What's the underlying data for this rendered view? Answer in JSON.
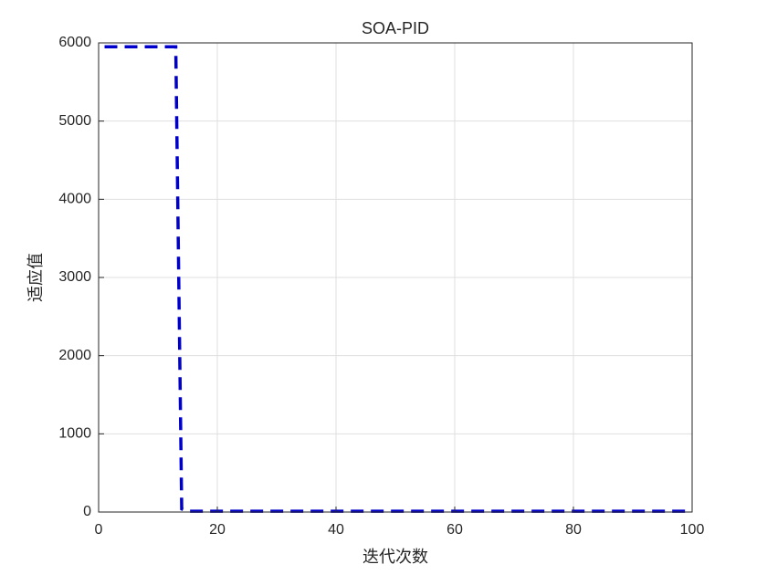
{
  "chart_data": {
    "type": "line",
    "title": "SOA-PID",
    "xlabel": "迭代次数",
    "ylabel": "适应值",
    "x": [
      1,
      2,
      3,
      4,
      5,
      6,
      7,
      8,
      9,
      10,
      11,
      12,
      13,
      14,
      15,
      16,
      17,
      18,
      19,
      20,
      21,
      22,
      23,
      24,
      25,
      26,
      27,
      28,
      29,
      30,
      31,
      32,
      33,
      34,
      35,
      36,
      37,
      38,
      39,
      40,
      41,
      42,
      43,
      44,
      45,
      46,
      47,
      48,
      49,
      50,
      51,
      52,
      53,
      54,
      55,
      56,
      57,
      58,
      59,
      60,
      61,
      62,
      63,
      64,
      65,
      66,
      67,
      68,
      69,
      70,
      71,
      72,
      73,
      74,
      75,
      76,
      77,
      78,
      79,
      80,
      81,
      82,
      83,
      84,
      85,
      86,
      87,
      88,
      89,
      90,
      91,
      92,
      93,
      94,
      95,
      96,
      97,
      98,
      99,
      100
    ],
    "series": [
      {
        "name": "SOA-PID",
        "color": "#0000cc",
        "values": [
          5950,
          5950,
          5950,
          5950,
          5950,
          5950,
          5950,
          5950,
          5950,
          5950,
          5950,
          5950,
          5950,
          40,
          10,
          10,
          10,
          10,
          10,
          10,
          10,
          10,
          10,
          10,
          10,
          10,
          10,
          10,
          10,
          10,
          10,
          10,
          10,
          10,
          10,
          10,
          10,
          10,
          10,
          10,
          10,
          10,
          10,
          10,
          10,
          10,
          10,
          10,
          10,
          10,
          10,
          10,
          10,
          10,
          10,
          10,
          10,
          10,
          10,
          10,
          10,
          10,
          10,
          10,
          10,
          10,
          10,
          10,
          10,
          10,
          10,
          10,
          10,
          10,
          10,
          10,
          10,
          10,
          10,
          10,
          10,
          10,
          10,
          10,
          10,
          10,
          10,
          10,
          10,
          10,
          10,
          10,
          10,
          10,
          10,
          10,
          10,
          10,
          10,
          10
        ]
      }
    ],
    "xlim": [
      0,
      100
    ],
    "xticks": [
      0,
      20,
      40,
      60,
      80,
      100
    ],
    "ylim": [
      0,
      6000
    ],
    "yticks": [
      0,
      1000,
      2000,
      3000,
      4000,
      5000,
      6000
    ],
    "grid": true
  }
}
